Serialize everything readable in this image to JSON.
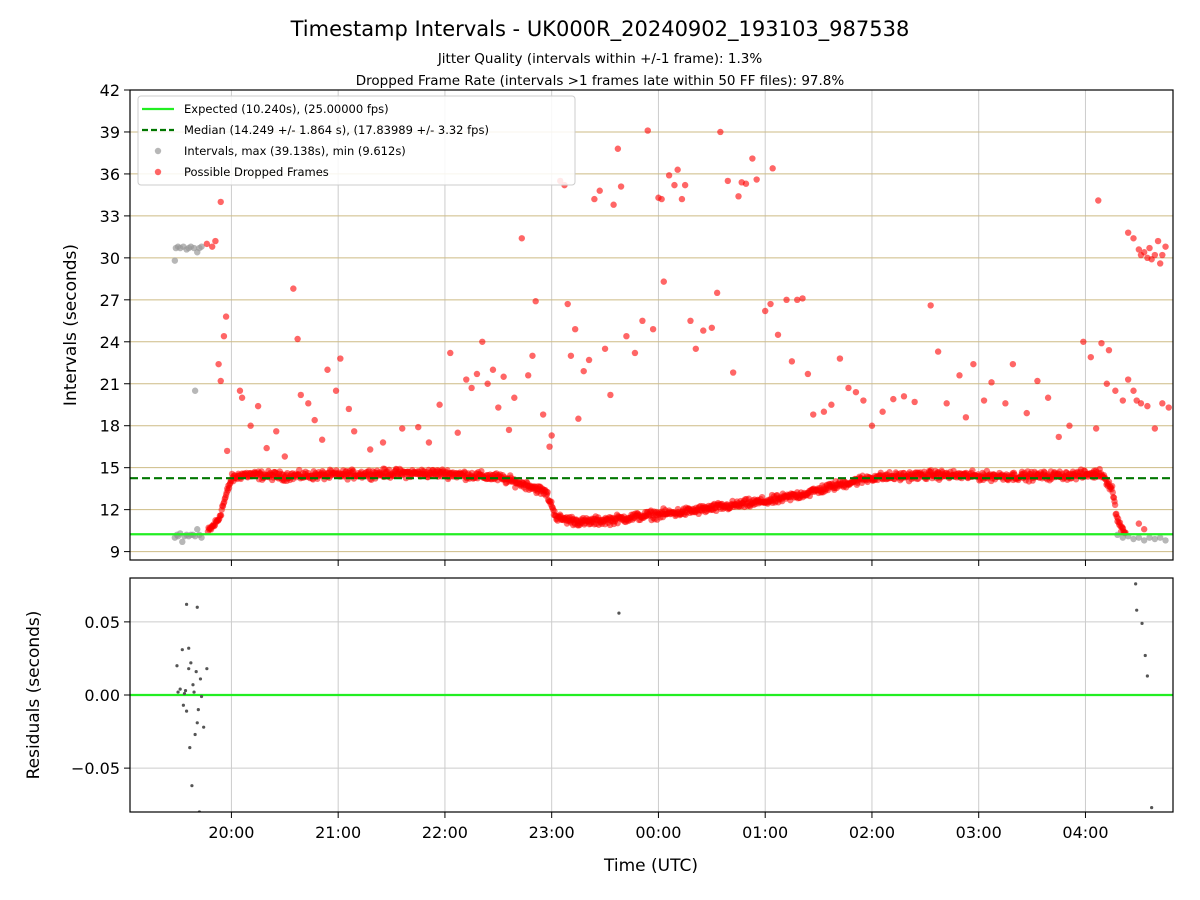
{
  "chart_data": [
    {
      "type": "scatter",
      "title": "Timestamp Intervals - UK000R_20240902_193103_987538",
      "subtitle_lines": [
        "Jitter Quality (intervals within +/-1 frame): 1.3%",
        "Dropped Frame Rate (intervals >1 frames late within 50 FF files): 97.8%"
      ],
      "xlabel": "",
      "ylabel": "Intervals (seconds)",
      "x_units": "hours after 19:00 UTC",
      "xlim": [
        0.05,
        9.82
      ],
      "ylim": [
        8.4,
        42
      ],
      "x_ticks": [
        {
          "x": 1,
          "label": "20:00"
        },
        {
          "x": 2,
          "label": "21:00"
        },
        {
          "x": 3,
          "label": "22:00"
        },
        {
          "x": 4,
          "label": "23:00"
        },
        {
          "x": 5,
          "label": "00:00"
        },
        {
          "x": 6,
          "label": "01:00"
        },
        {
          "x": 7,
          "label": "02:00"
        },
        {
          "x": 8,
          "label": "03:00"
        },
        {
          "x": 9,
          "label": "04:00"
        }
      ],
      "y_ticks": [
        9,
        12,
        15,
        18,
        21,
        24,
        27,
        30,
        33,
        36,
        39,
        42
      ],
      "y_tick_labels": [
        "9",
        "12",
        "15",
        "18",
        "21",
        "24",
        "27",
        "30",
        "33",
        "36",
        "39",
        "42"
      ],
      "grid": "horizontal lines at y ticks; vertical lines at x ticks",
      "legend_position": "upper-left",
      "legend": [
        "Expected (10.240s), (25.00000 fps)",
        "Median (14.249 +/- 1.864 s), (17.83989 +/- 3.32 fps)",
        "Intervals, max (39.138s), min (9.612s)",
        "Possible Dropped Frames"
      ],
      "expected_interval": 10.24,
      "median_interval": 14.249,
      "colors": {
        "expected": "#22ee22",
        "median": "#007700",
        "intervals": "#999999",
        "dropped": "#ff0000",
        "grid_h": "#cdbb85",
        "grid_v": "#cccccc"
      },
      "intervals": [
        [
          0.47,
          29.8
        ],
        [
          0.48,
          30.7
        ],
        [
          0.5,
          30.8
        ],
        [
          0.52,
          30.7
        ],
        [
          0.55,
          30.8
        ],
        [
          0.58,
          30.6
        ],
        [
          0.6,
          30.7
        ],
        [
          0.62,
          30.8
        ],
        [
          0.65,
          30.7
        ],
        [
          0.68,
          30.4
        ],
        [
          0.7,
          30.7
        ],
        [
          0.72,
          30.8
        ],
        [
          0.47,
          10.0
        ],
        [
          0.49,
          10.2
        ],
        [
          0.5,
          10.1
        ],
        [
          0.52,
          10.3
        ],
        [
          0.54,
          9.7
        ],
        [
          0.56,
          10.1
        ],
        [
          0.58,
          10.2
        ],
        [
          0.6,
          10.1
        ],
        [
          0.62,
          10.2
        ],
        [
          0.64,
          10.2
        ],
        [
          0.66,
          10.1
        ],
        [
          0.68,
          10.6
        ],
        [
          0.7,
          10.2
        ],
        [
          0.72,
          10.0
        ],
        [
          0.66,
          20.5
        ],
        [
          9.3,
          10.2
        ],
        [
          9.35,
          10.0
        ],
        [
          9.4,
          10.1
        ],
        [
          9.45,
          9.9
        ],
        [
          9.5,
          10.0
        ],
        [
          9.55,
          9.8
        ],
        [
          9.6,
          10.0
        ],
        [
          9.65,
          9.9
        ],
        [
          9.7,
          10.0
        ],
        [
          9.75,
          9.8
        ]
      ],
      "dropped_trend": [
        [
          0.78,
          10.4
        ],
        [
          0.88,
          11.3
        ],
        [
          0.95,
          13.0
        ],
        [
          1.0,
          14.2
        ],
        [
          1.1,
          14.5
        ],
        [
          1.5,
          14.4
        ],
        [
          2.0,
          14.5
        ],
        [
          2.5,
          14.6
        ],
        [
          3.0,
          14.6
        ],
        [
          3.5,
          14.3
        ],
        [
          3.8,
          13.7
        ],
        [
          3.95,
          13.2
        ],
        [
          4.05,
          11.4
        ],
        [
          4.3,
          11.1
        ],
        [
          4.6,
          11.3
        ],
        [
          4.9,
          11.6
        ],
        [
          5.2,
          11.8
        ],
        [
          5.5,
          12.1
        ],
        [
          5.8,
          12.4
        ],
        [
          6.1,
          12.7
        ],
        [
          6.4,
          13.2
        ],
        [
          6.7,
          13.8
        ],
        [
          7.0,
          14.3
        ],
        [
          7.3,
          14.4
        ],
        [
          7.6,
          14.5
        ],
        [
          8.0,
          14.4
        ],
        [
          8.5,
          14.4
        ],
        [
          9.0,
          14.5
        ],
        [
          9.15,
          14.6
        ],
        [
          9.25,
          13.5
        ],
        [
          9.3,
          11.2
        ],
        [
          9.38,
          10.3
        ]
      ],
      "dropped_outliers": [
        [
          0.77,
          31.0
        ],
        [
          0.82,
          30.8
        ],
        [
          0.85,
          31.2
        ],
        [
          0.9,
          34.0
        ],
        [
          0.93,
          24.4
        ],
        [
          0.95,
          25.8
        ],
        [
          0.88,
          22.4
        ],
        [
          0.9,
          21.2
        ],
        [
          0.96,
          16.2
        ],
        [
          1.08,
          20.5
        ],
        [
          1.1,
          20.0
        ],
        [
          1.18,
          18.0
        ],
        [
          1.25,
          19.4
        ],
        [
          1.33,
          16.4
        ],
        [
          1.42,
          17.6
        ],
        [
          1.5,
          15.8
        ],
        [
          1.58,
          27.8
        ],
        [
          1.62,
          24.2
        ],
        [
          1.65,
          20.2
        ],
        [
          1.72,
          19.6
        ],
        [
          1.78,
          18.4
        ],
        [
          1.85,
          17.0
        ],
        [
          1.9,
          22.0
        ],
        [
          1.98,
          20.5
        ],
        [
          2.02,
          22.8
        ],
        [
          2.1,
          19.2
        ],
        [
          2.15,
          17.6
        ],
        [
          2.3,
          16.3
        ],
        [
          2.42,
          16.8
        ],
        [
          2.6,
          17.8
        ],
        [
          2.75,
          17.9
        ],
        [
          2.85,
          16.8
        ],
        [
          2.95,
          19.5
        ],
        [
          3.05,
          23.2
        ],
        [
          3.12,
          17.5
        ],
        [
          3.2,
          21.3
        ],
        [
          3.25,
          20.7
        ],
        [
          3.3,
          21.7
        ],
        [
          3.35,
          24.0
        ],
        [
          3.4,
          21.0
        ],
        [
          3.45,
          22.0
        ],
        [
          3.5,
          19.3
        ],
        [
          3.55,
          21.5
        ],
        [
          3.6,
          17.7
        ],
        [
          3.65,
          20.0
        ],
        [
          3.72,
          31.4
        ],
        [
          3.78,
          21.6
        ],
        [
          3.82,
          23.0
        ],
        [
          3.85,
          26.9
        ],
        [
          3.92,
          18.8
        ],
        [
          3.98,
          16.5
        ],
        [
          4.0,
          17.3
        ],
        [
          4.08,
          35.5
        ],
        [
          4.12,
          35.2
        ],
        [
          4.15,
          26.7
        ],
        [
          4.18,
          23.0
        ],
        [
          4.22,
          24.9
        ],
        [
          4.25,
          18.5
        ],
        [
          4.3,
          21.9
        ],
        [
          4.35,
          22.7
        ],
        [
          4.4,
          34.2
        ],
        [
          4.45,
          34.8
        ],
        [
          4.5,
          23.5
        ],
        [
          4.55,
          20.2
        ],
        [
          4.58,
          33.8
        ],
        [
          4.62,
          37.8
        ],
        [
          4.65,
          35.1
        ],
        [
          4.7,
          24.4
        ],
        [
          4.78,
          23.2
        ],
        [
          4.85,
          25.5
        ],
        [
          4.9,
          39.1
        ],
        [
          4.95,
          24.9
        ],
        [
          5.0,
          34.3
        ],
        [
          5.03,
          34.2
        ],
        [
          5.05,
          28.3
        ],
        [
          5.1,
          35.9
        ],
        [
          5.15,
          35.2
        ],
        [
          5.18,
          36.3
        ],
        [
          5.22,
          34.2
        ],
        [
          5.25,
          35.2
        ],
        [
          5.3,
          25.5
        ],
        [
          5.35,
          23.5
        ],
        [
          5.42,
          24.8
        ],
        [
          5.5,
          25.0
        ],
        [
          5.55,
          27.5
        ],
        [
          5.58,
          39.0
        ],
        [
          5.65,
          35.5
        ],
        [
          5.7,
          21.8
        ],
        [
          5.75,
          34.4
        ],
        [
          5.78,
          35.4
        ],
        [
          5.82,
          35.3
        ],
        [
          5.88,
          37.1
        ],
        [
          5.92,
          35.6
        ],
        [
          6.0,
          26.2
        ],
        [
          6.05,
          26.7
        ],
        [
          6.07,
          36.4
        ],
        [
          6.12,
          24.5
        ],
        [
          6.2,
          27.0
        ],
        [
          6.25,
          22.6
        ],
        [
          6.3,
          27.0
        ],
        [
          6.35,
          27.1
        ],
        [
          6.4,
          21.7
        ],
        [
          6.45,
          18.8
        ],
        [
          6.55,
          19.0
        ],
        [
          6.62,
          19.5
        ],
        [
          6.7,
          22.8
        ],
        [
          6.78,
          20.7
        ],
        [
          6.85,
          20.4
        ],
        [
          6.92,
          19.8
        ],
        [
          7.0,
          18.0
        ],
        [
          7.1,
          19.0
        ],
        [
          7.2,
          19.9
        ],
        [
          7.3,
          20.1
        ],
        [
          7.4,
          19.7
        ],
        [
          7.55,
          26.6
        ],
        [
          7.62,
          23.3
        ],
        [
          7.7,
          19.6
        ],
        [
          7.82,
          21.6
        ],
        [
          7.88,
          18.6
        ],
        [
          7.95,
          22.4
        ],
        [
          8.05,
          19.8
        ],
        [
          8.12,
          21.1
        ],
        [
          8.25,
          19.6
        ],
        [
          8.32,
          22.4
        ],
        [
          8.45,
          18.9
        ],
        [
          8.55,
          21.2
        ],
        [
          8.65,
          20.0
        ],
        [
          8.75,
          17.2
        ],
        [
          8.85,
          18.0
        ],
        [
          8.98,
          24.0
        ],
        [
          9.05,
          22.9
        ],
        [
          9.1,
          17.8
        ],
        [
          9.12,
          34.1
        ],
        [
          9.15,
          23.9
        ],
        [
          9.2,
          21.0
        ],
        [
          9.22,
          23.4
        ],
        [
          9.28,
          20.5
        ],
        [
          9.35,
          19.8
        ],
        [
          9.4,
          31.8
        ],
        [
          9.45,
          31.4
        ],
        [
          9.5,
          30.6
        ],
        [
          9.52,
          30.2
        ],
        [
          9.55,
          30.4
        ],
        [
          9.58,
          30.0
        ],
        [
          9.6,
          30.7
        ],
        [
          9.62,
          29.9
        ],
        [
          9.65,
          30.2
        ],
        [
          9.68,
          31.2
        ],
        [
          9.7,
          29.6
        ],
        [
          9.72,
          30.2
        ],
        [
          9.75,
          30.8
        ],
        [
          9.4,
          21.3
        ],
        [
          9.45,
          20.5
        ],
        [
          9.48,
          19.8
        ],
        [
          9.52,
          19.6
        ],
        [
          9.58,
          19.4
        ],
        [
          9.65,
          17.8
        ],
        [
          9.72,
          19.6
        ],
        [
          9.78,
          19.3
        ],
        [
          9.5,
          11.0
        ],
        [
          9.55,
          10.6
        ]
      ]
    },
    {
      "type": "scatter",
      "xlabel": "Time (UTC)",
      "ylabel": "Residuals (seconds)",
      "x_units": "hours after 19:00 UTC",
      "xlim": [
        0.05,
        9.82
      ],
      "ylim": [
        -0.08,
        0.08
      ],
      "x_ticks": [
        {
          "x": 1,
          "label": "20:00"
        },
        {
          "x": 2,
          "label": "21:00"
        },
        {
          "x": 3,
          "label": "22:00"
        },
        {
          "x": 4,
          "label": "23:00"
        },
        {
          "x": 5,
          "label": "00:00"
        },
        {
          "x": 6,
          "label": "01:00"
        },
        {
          "x": 7,
          "label": "02:00"
        },
        {
          "x": 8,
          "label": "03:00"
        },
        {
          "x": 9,
          "label": "04:00"
        }
      ],
      "y_ticks": [
        -0.05,
        0.0,
        0.05
      ],
      "y_tick_labels": [
        "−0.05",
        "0.00",
        "0.05"
      ],
      "grid": "horizontal and vertical",
      "zero_line": 0.0,
      "points": [
        [
          0.49,
          0.02
        ],
        [
          0.5,
          0.002
        ],
        [
          0.52,
          0.004
        ],
        [
          0.54,
          0.031
        ],
        [
          0.55,
          -0.007
        ],
        [
          0.56,
          0.001
        ],
        [
          0.57,
          0.003
        ],
        [
          0.58,
          -0.011
        ],
        [
          0.6,
          0.018
        ],
        [
          0.6,
          0.032
        ],
        [
          0.61,
          -0.036
        ],
        [
          0.62,
          0.022
        ],
        [
          0.63,
          -0.062
        ],
        [
          0.64,
          0.007
        ],
        [
          0.65,
          0.002
        ],
        [
          0.66,
          -0.027
        ],
        [
          0.67,
          0.016
        ],
        [
          0.68,
          0.06
        ],
        [
          0.68,
          -0.019
        ],
        [
          0.69,
          -0.01
        ],
        [
          0.7,
          -0.08
        ],
        [
          0.71,
          0.011
        ],
        [
          0.72,
          -0.001
        ],
        [
          0.74,
          -0.022
        ],
        [
          0.58,
          0.062
        ],
        [
          0.77,
          0.018
        ],
        [
          4.63,
          0.056
        ],
        [
          9.47,
          0.076
        ],
        [
          9.48,
          0.058
        ],
        [
          9.53,
          0.049
        ],
        [
          9.56,
          0.027
        ],
        [
          9.58,
          0.013
        ],
        [
          9.62,
          -0.077
        ]
      ],
      "point_color": "#555555"
    }
  ]
}
